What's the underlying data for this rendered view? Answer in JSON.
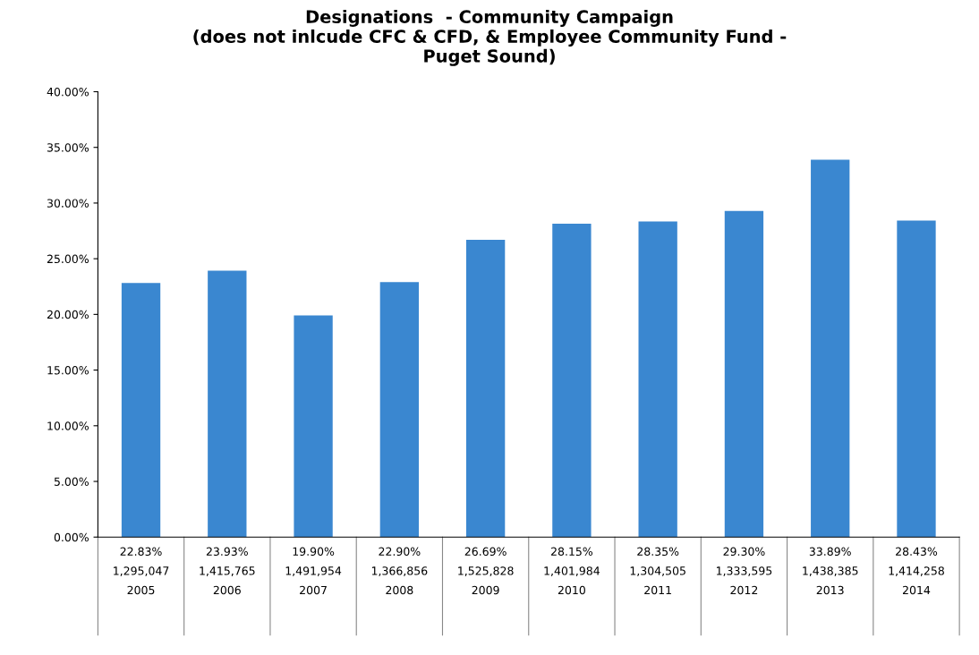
{
  "chart_data": {
    "type": "bar",
    "title": "Designations  - Community Campaign\n(does not inlcude CFC & CFD, & Employee Community Fund -\nPuget Sound)",
    "categories": [
      "1,295,047\n2005",
      "1,415,765\n2006",
      "1,491,954\n2007",
      "1,366,856\n2008",
      "1,525,828\n2009",
      "1,401,984\n2010",
      "1,304,505\n2011",
      "1,333,595\n2012",
      "1,438,385\n2013",
      "1,414,258\n2014"
    ],
    "values": [
      22.83,
      23.93,
      19.9,
      22.9,
      26.69,
      28.15,
      28.35,
      29.3,
      33.89,
      28.43
    ],
    "value_labels": [
      "22.83%",
      "23.93%",
      "19.90%",
      "22.90%",
      "26.69%",
      "28.15%",
      "28.35%",
      "29.30%",
      "33.89%",
      "28.43%"
    ],
    "color": "#3a87d0",
    "ylim": [
      0,
      40
    ],
    "yticks": [
      {
        "value": 0,
        "label": "0.00%"
      },
      {
        "value": 5,
        "label": "5.00%"
      },
      {
        "value": 10,
        "label": "10.00%"
      },
      {
        "value": 15,
        "label": "15.00%"
      },
      {
        "value": 20,
        "label": "20.00%"
      },
      {
        "value": 25,
        "label": "25.00%"
      },
      {
        "value": 30,
        "label": "30.00%"
      },
      {
        "value": 35,
        "label": "35.00%"
      },
      {
        "value": 40,
        "label": "40.00%"
      }
    ],
    "grid": false,
    "legend": false
  }
}
